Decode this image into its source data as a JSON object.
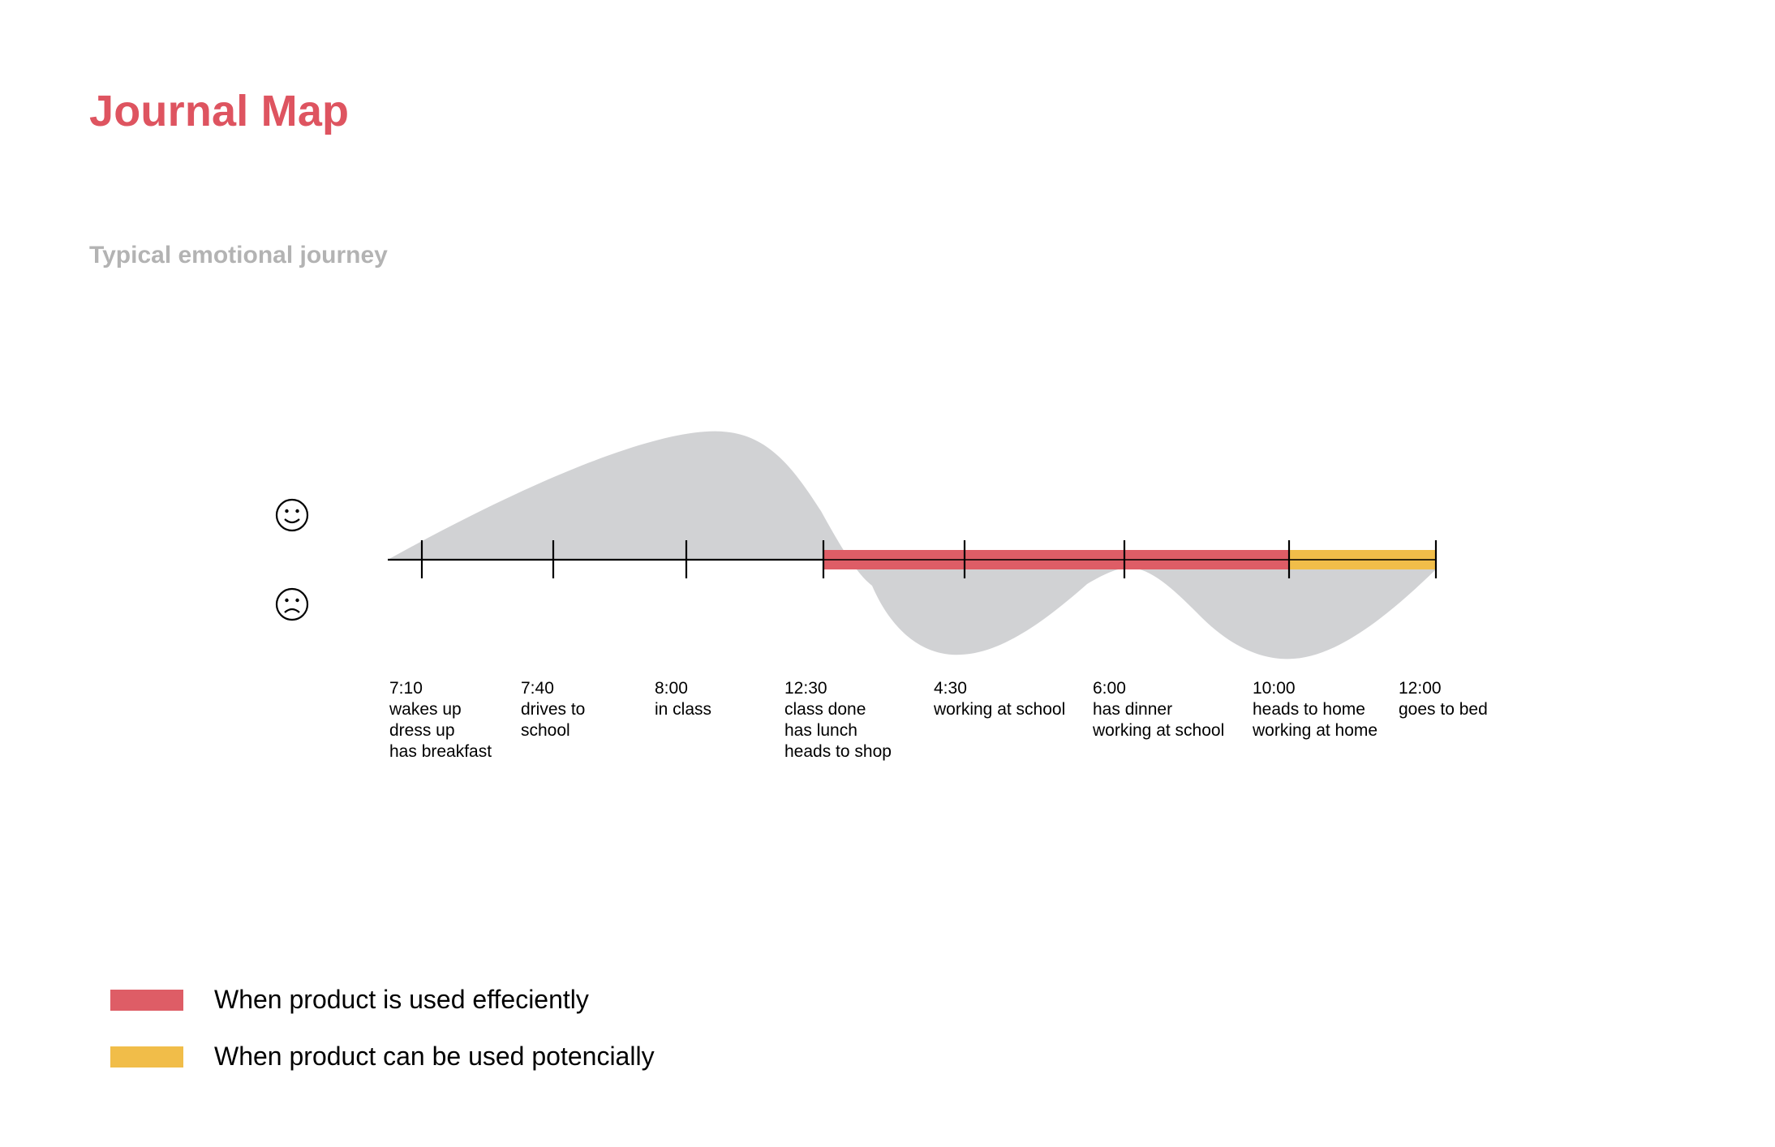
{
  "title": "Journal Map",
  "subtitle": "Typical emotional journey",
  "icons": {
    "happy": "smiley-face-icon",
    "sad": "frowning-face-icon"
  },
  "colors": {
    "title": "#de5460",
    "subtitle": "#b3b3b3",
    "emotion_area": "#d1d2d4",
    "used_efficiently": "#de5d66",
    "used_potentially": "#f1bd49",
    "axis": "#000000"
  },
  "stages": [
    {
      "time": "7:10",
      "activities": [
        "wakes up",
        "dress up",
        "has breakfast"
      ]
    },
    {
      "time": "7:40",
      "activities": [
        "drives to",
        "school"
      ]
    },
    {
      "time": "8:00",
      "activities": [
        "in class"
      ]
    },
    {
      "time": "12:30",
      "activities": [
        "class done",
        "has lunch",
        "heads to shop"
      ]
    },
    {
      "time": "4:30",
      "activities": [
        "working at school"
      ]
    },
    {
      "time": "6:00",
      "activities": [
        "has dinner",
        "working at school"
      ]
    },
    {
      "time": "10:00",
      "activities": [
        "heads to home",
        "working at home"
      ]
    },
    {
      "time": "12:00",
      "activities": [
        "goes to bed"
      ]
    }
  ],
  "highlights": [
    {
      "from": "12:30",
      "to": "10:00",
      "type": "efficient"
    },
    {
      "from": "10:00",
      "to": "12:00",
      "type": "potential"
    }
  ],
  "legend": [
    {
      "label": "When product is used effeciently",
      "color": "#de5d66"
    },
    {
      "label": "When product can be used potencially",
      "color": "#f1bd49"
    }
  ]
}
